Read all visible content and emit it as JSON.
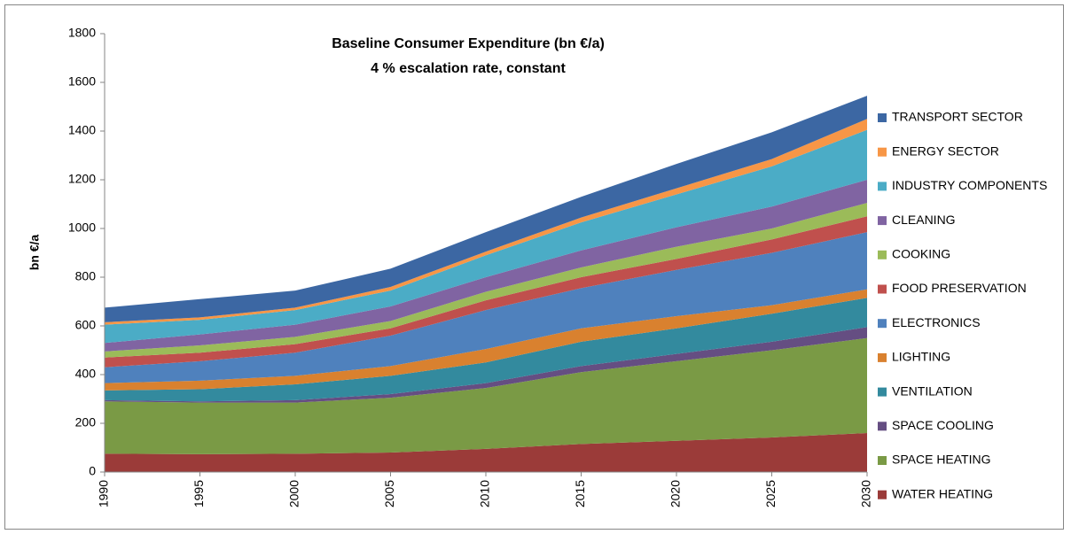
{
  "chart_data": {
    "type": "stacked_area",
    "title": "Baseline Consumer Expenditure (bn €/a)",
    "subtitle": "4 % escalation rate, constant",
    "y_label": "bn €/a",
    "x": [
      1990,
      1995,
      2000,
      2005,
      2010,
      2015,
      2020,
      2025,
      2030
    ],
    "xlim": [
      1990,
      2030
    ],
    "xticks": [
      1990,
      1995,
      2000,
      2005,
      2010,
      2015,
      2020,
      2025,
      2030
    ],
    "ylim": [
      0,
      1800
    ],
    "yticks": [
      0,
      200,
      400,
      600,
      800,
      1000,
      1200,
      1400,
      1600,
      1800
    ],
    "grid": false,
    "legend": "right",
    "series": [
      {
        "name": "WATER HEATING",
        "color": "#9b3b39",
        "values": [
          75,
          73,
          75,
          80,
          95,
          115,
          128,
          142,
          160
        ]
      },
      {
        "name": "SPACE HEATING",
        "color": "#7a9a45",
        "values": [
          215,
          212,
          210,
          225,
          250,
          295,
          327,
          358,
          390
        ]
      },
      {
        "name": "SPACE COOLING",
        "color": "#654e82",
        "values": [
          5,
          5,
          10,
          15,
          20,
          25,
          30,
          35,
          45
        ]
      },
      {
        "name": "VENTILATION",
        "color": "#338a9e",
        "values": [
          40,
          50,
          65,
          75,
          85,
          100,
          105,
          115,
          120
        ]
      },
      {
        "name": "LIGHTING",
        "color": "#d9812f",
        "values": [
          30,
          35,
          35,
          40,
          55,
          55,
          50,
          35,
          35
        ]
      },
      {
        "name": "ELECTRONICS",
        "color": "#4f81bd",
        "values": [
          65,
          80,
          95,
          125,
          160,
          165,
          190,
          215,
          235
        ]
      },
      {
        "name": "FOOD PRESERVATION",
        "color": "#c0504d",
        "values": [
          40,
          35,
          35,
          30,
          40,
          45,
          45,
          55,
          65
        ]
      },
      {
        "name": "COOKING",
        "color": "#9bbb59",
        "values": [
          25,
          30,
          30,
          30,
          35,
          40,
          50,
          45,
          55
        ]
      },
      {
        "name": "CLEANING",
        "color": "#8064a2",
        "values": [
          35,
          45,
          50,
          60,
          60,
          70,
          80,
          90,
          95
        ]
      },
      {
        "name": "INDUSTRY COMPONENTS",
        "color": "#4bacc6",
        "values": [
          75,
          60,
          60,
          65,
          90,
          115,
          135,
          165,
          205
        ]
      },
      {
        "name": "ENERGY SECTOR",
        "color": "#f79646",
        "values": [
          10,
          10,
          10,
          15,
          15,
          20,
          25,
          30,
          45
        ]
      },
      {
        "name": "TRANSPORT SECTOR",
        "color": "#3c67a3",
        "values": [
          60,
          75,
          70,
          75,
          80,
          85,
          100,
          110,
          95
        ]
      }
    ]
  }
}
